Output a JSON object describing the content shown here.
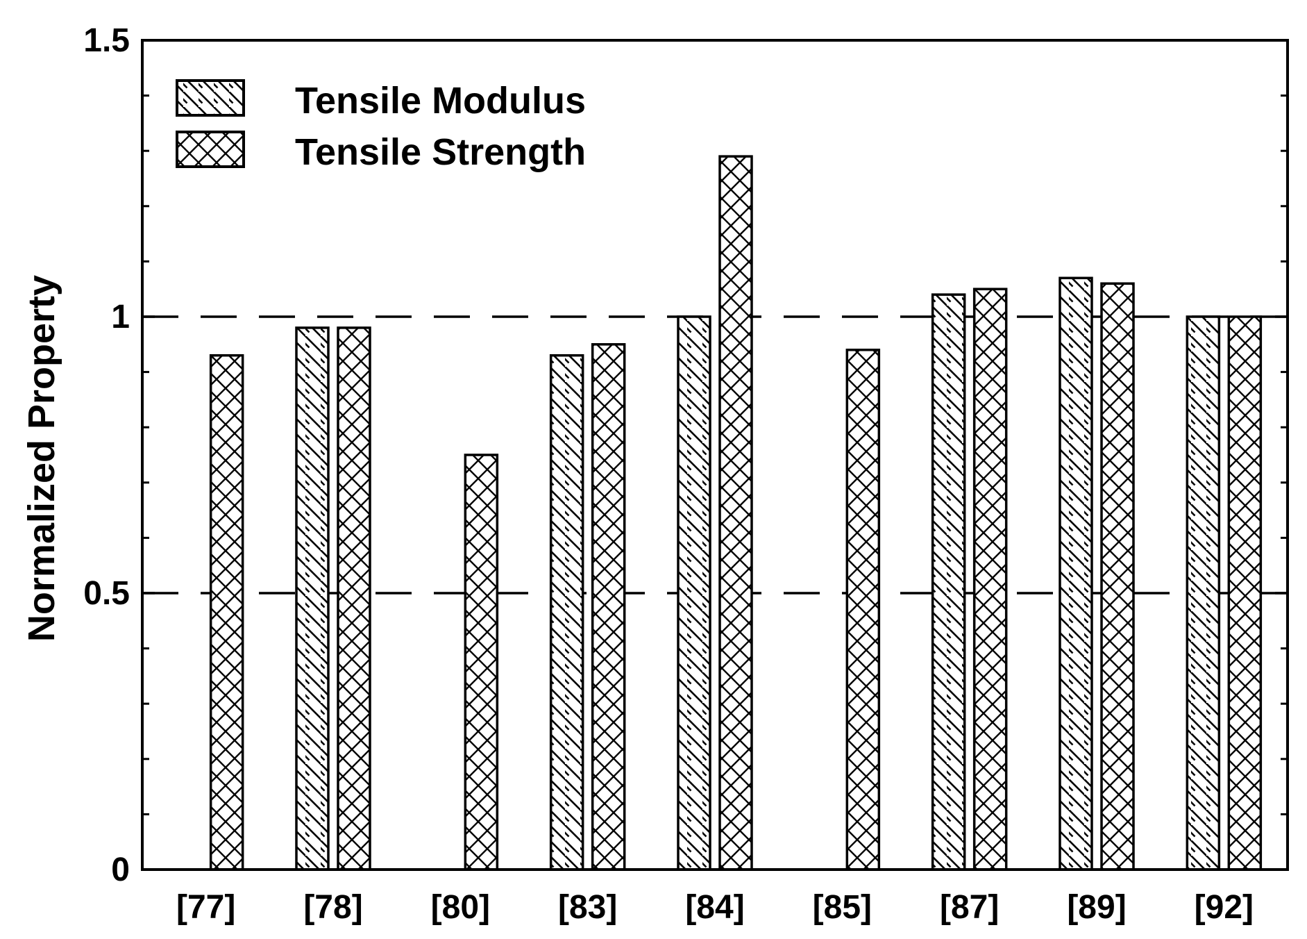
{
  "chart_data": {
    "type": "bar",
    "title": "",
    "xlabel": "",
    "ylabel": "Normalized  Property",
    "ylim": [
      0,
      1.5
    ],
    "yticks": [
      0,
      0.5,
      1,
      1.5
    ],
    "ytick_labels": [
      "0",
      "0.5",
      "1",
      "1.5"
    ],
    "reference_lines": [
      0.5,
      1.0
    ],
    "categories": [
      "[77]",
      "[78]",
      "[80]",
      "[83]",
      "[84]",
      "[85]",
      "[87]",
      "[89]",
      "[92]"
    ],
    "series": [
      {
        "name": "Tensile Modulus",
        "pattern": "diagonal-hatch",
        "values": [
          null,
          0.98,
          null,
          0.93,
          1.0,
          null,
          1.04,
          1.07,
          1.0
        ]
      },
      {
        "name": "Tensile Strength",
        "pattern": "cross-hatch",
        "values": [
          0.93,
          0.98,
          0.75,
          0.95,
          1.29,
          0.94,
          1.05,
          1.06,
          1.0
        ]
      }
    ],
    "legend": {
      "placement": "top-left"
    },
    "grid": false,
    "colors": {
      "line": "#000000",
      "fill": "#ffffff"
    }
  }
}
